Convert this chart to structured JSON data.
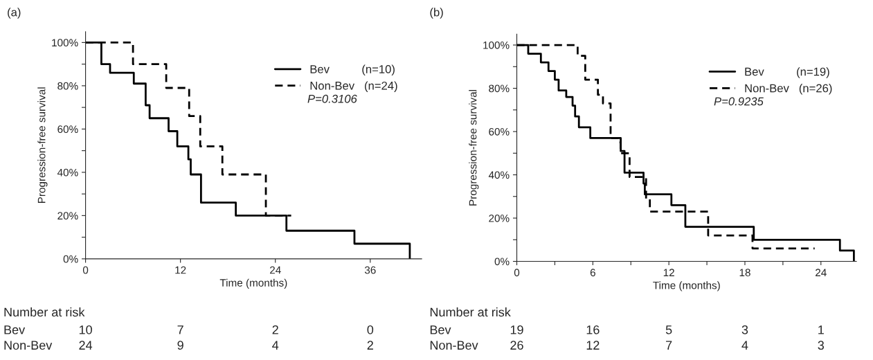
{
  "chart_data": [
    {
      "type": "step",
      "title": "(a)",
      "xlabel": "Time (months)",
      "ylabel": "Progression-free survival",
      "xlim": [
        0,
        42.5
      ],
      "xticks": [
        0,
        12,
        24,
        36
      ],
      "ylim": [
        0,
        105
      ],
      "yticks": [
        {
          "value": 0,
          "label": "0%"
        },
        {
          "value": 10,
          "label": null
        },
        {
          "value": 20,
          "label": "20%"
        },
        {
          "value": 30,
          "label": null
        },
        {
          "value": 40,
          "label": "40%"
        },
        {
          "value": 50,
          "label": null
        },
        {
          "value": 60,
          "label": "60%"
        },
        {
          "value": 70,
          "label": null
        },
        {
          "value": 80,
          "label": "80%"
        },
        {
          "value": 90,
          "label": null
        },
        {
          "value": 100,
          "label": "100%"
        }
      ],
      "grid": false,
      "legend": "top right",
      "series": [
        {
          "name": "Bev          (n=10)",
          "color": "#000000",
          "line_style": "solid",
          "x": [
            0,
            2,
            3.1,
            6.1,
            7.6,
            8.1,
            10.5,
            11.6,
            13,
            13.3,
            14.6,
            19,
            25.4,
            34,
            41
          ],
          "values": [
            100,
            90,
            86,
            81,
            71,
            65,
            59,
            52,
            46,
            39,
            26,
            20,
            13,
            7,
            0
          ]
        },
        {
          "name": "Non-Bev   (n=24)",
          "color": "#000000",
          "line_style": "dashed",
          "x": [
            0,
            6,
            10.2,
            13.1,
            14.5,
            17.3,
            22.8,
            26
          ],
          "values": [
            100,
            90,
            79,
            66,
            52,
            39,
            20,
            20
          ]
        }
      ],
      "annotations": [
        "P=0.3106",
        "Number at risk",
        "Bev",
        "10",
        "7",
        "2",
        "0",
        "Non-Bev",
        "24",
        "9",
        "4",
        "2"
      ]
    },
    {
      "type": "step",
      "title": "(b)",
      "xlabel": "Time (months)",
      "ylabel": "Progression-free survival",
      "xlim": [
        0,
        26.8
      ],
      "xticks": [
        0,
        {
          "value": 3,
          "label": null
        },
        6,
        {
          "value": 9,
          "label": null
        },
        12,
        {
          "value": 15,
          "label": null
        },
        18,
        {
          "value": 21,
          "label": null
        },
        24
      ],
      "ylim": [
        0,
        105
      ],
      "yticks": [
        {
          "value": 0,
          "label": "0%"
        },
        {
          "value": 10,
          "label": null
        },
        {
          "value": 20,
          "label": "20%"
        },
        {
          "value": 30,
          "label": null
        },
        {
          "value": 40,
          "label": "40%"
        },
        {
          "value": 50,
          "label": null
        },
        {
          "value": 60,
          "label": "60%"
        },
        {
          "value": 70,
          "label": null
        },
        {
          "value": 80,
          "label": "80%"
        },
        {
          "value": 90,
          "label": null
        },
        {
          "value": 100,
          "label": "100%"
        }
      ],
      "grid": false,
      "legend": "top right",
      "series": [
        {
          "name": "Bev          (n=19)",
          "color": "#000000",
          "line_style": "solid",
          "x": [
            0,
            0.9,
            1.9,
            2.5,
            3,
            3.3,
            3.9,
            4.4,
            4.6,
            4.9,
            5.8,
            8.2,
            8.5,
            10,
            10.1,
            12.2,
            13.3,
            18.7,
            25.5,
            26.6
          ],
          "values": [
            100,
            96,
            92,
            88,
            84,
            79,
            76,
            72,
            67,
            62,
            57,
            51,
            41,
            36,
            31,
            26,
            16,
            10,
            5,
            0
          ]
        },
        {
          "name": "Non-Bev   (n=26)",
          "color": "#000000",
          "line_style": "dashed",
          "x": [
            0,
            4.8,
            5.4,
            6.4,
            6.8,
            7.4,
            8,
            8.2,
            8.9,
            10.2,
            10.5,
            15.1,
            18.6,
            23.5
          ],
          "values": [
            100,
            95,
            84,
            77,
            73,
            57,
            55,
            50,
            39,
            29,
            23,
            12,
            6,
            6
          ]
        }
      ],
      "annotations": [
        "P=0.9235",
        "Number at risk",
        "Bev",
        "19",
        "16",
        "5",
        "3",
        "1",
        "Non-Bev",
        "26",
        "12",
        "7",
        "4",
        "3"
      ]
    }
  ]
}
